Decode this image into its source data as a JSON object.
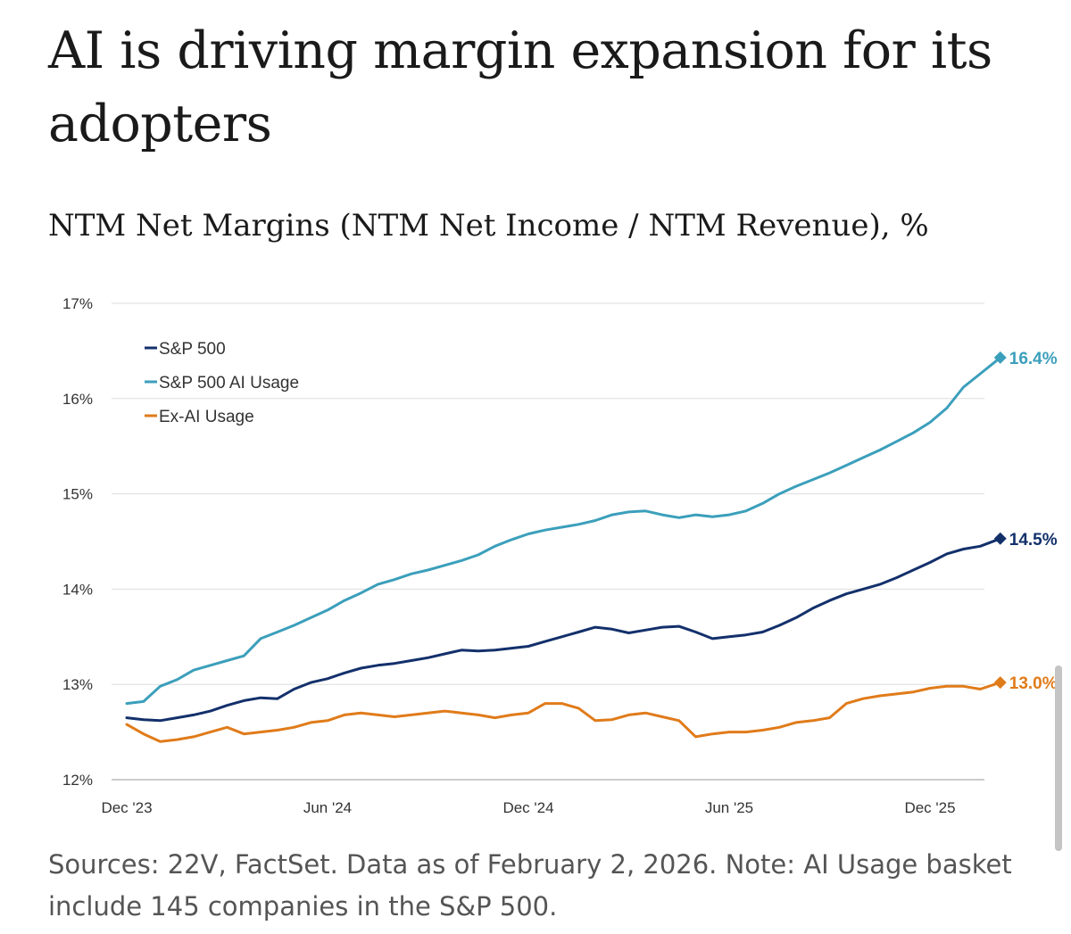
{
  "title": "AI is driving margin expansion for its adopters",
  "subtitle": "NTM Net Margins (NTM Net Income / NTM Revenue), %",
  "source": "Sources: 22V, FactSet. Data as of February 2, 2026. Note: AI Usage basket include 145 companies in the S&P 500.",
  "chart_data": {
    "type": "line",
    "title": "NTM Net Margins (NTM Net Income / NTM Revenue), %",
    "xlabel": "",
    "ylabel": "",
    "xlim": [
      0,
      26.1
    ],
    "ylim": [
      12,
      17
    ],
    "grid": true,
    "legend_position": "top-left",
    "y_ticks": [
      {
        "value": 12,
        "label": "12%"
      },
      {
        "value": 13,
        "label": "13%"
      },
      {
        "value": 14,
        "label": "14%"
      },
      {
        "value": 15,
        "label": "15%"
      },
      {
        "value": 16,
        "label": "16%"
      },
      {
        "value": 17,
        "label": "17%"
      }
    ],
    "x_ticks": [
      {
        "value": 0,
        "label": "Dec '23"
      },
      {
        "value": 6,
        "label": "Jun '24"
      },
      {
        "value": 12,
        "label": "Dec '24"
      },
      {
        "value": 18,
        "label": "Jun '25"
      },
      {
        "value": 24,
        "label": "Dec '25"
      }
    ],
    "series": [
      {
        "name": "S&P 500",
        "color": "#13306b",
        "end_label": "14.5%",
        "x": [
          0,
          0.5,
          1,
          1.5,
          2,
          2.5,
          3,
          3.5,
          4,
          4.5,
          5,
          5.5,
          6,
          6.5,
          7,
          7.5,
          8,
          8.5,
          9,
          9.5,
          10,
          10.5,
          11,
          11.5,
          12,
          12.5,
          13,
          13.5,
          14,
          14.5,
          15,
          15.5,
          16,
          16.5,
          17,
          17.5,
          18,
          18.5,
          19,
          19.5,
          20,
          20.5,
          21,
          21.5,
          22,
          22.5,
          23,
          23.5,
          24,
          24.5,
          25,
          25.5,
          26.1
        ],
        "values": [
          12.65,
          12.63,
          12.62,
          12.65,
          12.68,
          12.72,
          12.78,
          12.83,
          12.86,
          12.85,
          12.95,
          13.02,
          13.06,
          13.12,
          13.17,
          13.2,
          13.22,
          13.25,
          13.28,
          13.32,
          13.36,
          13.35,
          13.36,
          13.38,
          13.4,
          13.45,
          13.5,
          13.55,
          13.6,
          13.58,
          13.54,
          13.57,
          13.6,
          13.61,
          13.55,
          13.48,
          13.5,
          13.52,
          13.55,
          13.62,
          13.7,
          13.8,
          13.88,
          13.95,
          14.0,
          14.05,
          14.12,
          14.2,
          14.28,
          14.37,
          14.42,
          14.45,
          14.53
        ]
      },
      {
        "name": "S&P 500 AI Usage",
        "color": "#3b9fbb",
        "end_label": "16.4%",
        "x": [
          0,
          0.5,
          1,
          1.5,
          2,
          2.5,
          3,
          3.5,
          4,
          4.5,
          5,
          5.5,
          6,
          6.5,
          7,
          7.5,
          8,
          8.5,
          9,
          9.5,
          10,
          10.5,
          11,
          11.5,
          12,
          12.5,
          13,
          13.5,
          14,
          14.5,
          15,
          15.5,
          16,
          16.5,
          17,
          17.5,
          18,
          18.5,
          19,
          19.5,
          20,
          20.5,
          21,
          21.5,
          22,
          22.5,
          23,
          23.5,
          24,
          24.5,
          25,
          25.5,
          26.1
        ],
        "values": [
          12.8,
          12.82,
          12.98,
          13.05,
          13.15,
          13.2,
          13.25,
          13.3,
          13.48,
          13.55,
          13.62,
          13.7,
          13.78,
          13.88,
          13.96,
          14.05,
          14.1,
          14.16,
          14.2,
          14.25,
          14.3,
          14.36,
          14.45,
          14.52,
          14.58,
          14.62,
          14.65,
          14.68,
          14.72,
          14.78,
          14.81,
          14.82,
          14.78,
          14.75,
          14.78,
          14.76,
          14.78,
          14.82,
          14.9,
          15.0,
          15.08,
          15.15,
          15.22,
          15.3,
          15.38,
          15.46,
          15.55,
          15.64,
          15.75,
          15.9,
          16.12,
          16.26,
          16.43
        ]
      },
      {
        "name": "Ex-AI Usage",
        "color": "#e07b1a",
        "end_label": "13.0%",
        "x": [
          0,
          0.5,
          1,
          1.5,
          2,
          2.5,
          3,
          3.5,
          4,
          4.5,
          5,
          5.5,
          6,
          6.5,
          7,
          7.5,
          8,
          8.5,
          9,
          9.5,
          10,
          10.5,
          11,
          11.5,
          12,
          12.5,
          13,
          13.5,
          14,
          14.5,
          15,
          15.5,
          16,
          16.5,
          17,
          17.5,
          18,
          18.5,
          19,
          19.5,
          20,
          20.5,
          21,
          21.5,
          22,
          22.5,
          23,
          23.5,
          24,
          24.5,
          25,
          25.5,
          26.1
        ],
        "values": [
          12.58,
          12.48,
          12.4,
          12.42,
          12.45,
          12.5,
          12.55,
          12.48,
          12.5,
          12.52,
          12.55,
          12.6,
          12.62,
          12.68,
          12.7,
          12.68,
          12.66,
          12.68,
          12.7,
          12.72,
          12.7,
          12.68,
          12.65,
          12.68,
          12.7,
          12.8,
          12.8,
          12.75,
          12.62,
          12.63,
          12.68,
          12.7,
          12.66,
          12.62,
          12.45,
          12.48,
          12.5,
          12.5,
          12.52,
          12.55,
          12.6,
          12.62,
          12.65,
          12.8,
          12.85,
          12.88,
          12.9,
          12.92,
          12.96,
          12.98,
          12.98,
          12.95,
          13.02
        ]
      }
    ]
  }
}
